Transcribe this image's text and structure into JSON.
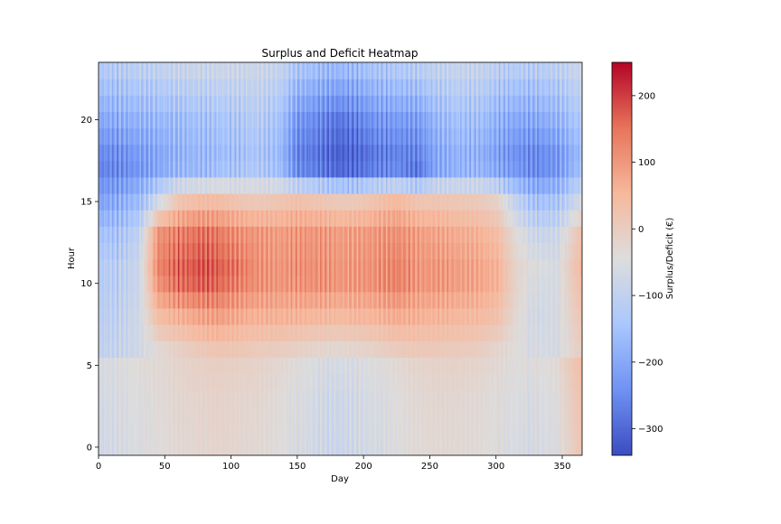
{
  "chart_data": {
    "type": "heatmap",
    "title": "Surplus and Deficit Heatmap",
    "xlabel": "Day",
    "ylabel": "Hour",
    "colorbar_label": "Surplus/Deficit (€)",
    "colormap": "coolwarm",
    "colormap_stops": [
      "#3b4cc0",
      "#6f92f3",
      "#aac7fd",
      "#dddddd",
      "#f7b89c",
      "#e7745b",
      "#b40426"
    ],
    "xlim": [
      0,
      365
    ],
    "ylim": [
      -0.5,
      23.5
    ],
    "x_ticks": [
      0,
      50,
      100,
      150,
      200,
      250,
      300,
      350
    ],
    "y_ticks": [
      0,
      5,
      10,
      15,
      20
    ],
    "color_range": [
      -340,
      250
    ],
    "colorbar_ticks": [
      -300,
      -200,
      -100,
      0,
      100,
      200
    ],
    "grid": false,
    "hours": [
      0,
      3,
      5,
      6,
      8,
      10,
      11,
      13,
      15,
      17,
      18,
      20,
      23
    ],
    "days": [
      0,
      15,
      30,
      45,
      60,
      75,
      90,
      105,
      120,
      135,
      150,
      165,
      180,
      195,
      210,
      225,
      240,
      255,
      270,
      285,
      300,
      315,
      330,
      345,
      364
    ],
    "values": [
      [
        -70,
        -60,
        -50,
        -40,
        -30,
        -25,
        -20,
        -25,
        -30,
        -40,
        -55,
        -70,
        -80,
        -70,
        -60,
        -45,
        -35,
        -30,
        -30,
        -35,
        -45,
        -55,
        -60,
        -50,
        20
      ],
      [
        -65,
        -55,
        -45,
        -35,
        -25,
        -20,
        -15,
        -20,
        -25,
        -35,
        -50,
        -65,
        -75,
        -65,
        -55,
        -40,
        -30,
        -25,
        -25,
        -30,
        -40,
        -50,
        -55,
        -45,
        30
      ],
      [
        -60,
        -50,
        -40,
        -30,
        -20,
        -10,
        -5,
        -10,
        -15,
        -25,
        -40,
        -55,
        -60,
        -55,
        -45,
        -30,
        -20,
        -15,
        -15,
        -20,
        -30,
        -40,
        -45,
        -35,
        40
      ],
      [
        -100,
        -90,
        -70,
        -30,
        -10,
        10,
        20,
        15,
        5,
        0,
        -10,
        -20,
        -25,
        -20,
        -10,
        5,
        10,
        10,
        5,
        0,
        -20,
        -40,
        -60,
        -60,
        0
      ],
      [
        -110,
        -100,
        -70,
        40,
        60,
        80,
        90,
        70,
        60,
        60,
        55,
        50,
        45,
        50,
        55,
        70,
        60,
        55,
        50,
        45,
        30,
        -30,
        -70,
        -60,
        20
      ],
      [
        -120,
        -110,
        -80,
        110,
        150,
        170,
        160,
        130,
        110,
        100,
        105,
        110,
        100,
        100,
        110,
        130,
        100,
        100,
        90,
        80,
        60,
        -20,
        -60,
        -60,
        40
      ],
      [
        -120,
        -110,
        -80,
        130,
        160,
        180,
        170,
        140,
        110,
        100,
        110,
        110,
        100,
        100,
        110,
        130,
        100,
        100,
        90,
        80,
        60,
        -20,
        -50,
        -60,
        50
      ],
      [
        -150,
        -140,
        -100,
        110,
        130,
        150,
        140,
        110,
        100,
        90,
        100,
        100,
        90,
        90,
        100,
        110,
        90,
        80,
        70,
        60,
        40,
        -40,
        -80,
        -80,
        30
      ],
      [
        -210,
        -190,
        -160,
        -60,
        20,
        40,
        40,
        20,
        10,
        20,
        30,
        20,
        10,
        10,
        30,
        50,
        20,
        20,
        15,
        10,
        -10,
        -100,
        -150,
        -140,
        -60
      ],
      [
        -260,
        -250,
        -230,
        -200,
        -170,
        -170,
        -150,
        -140,
        -130,
        -150,
        -250,
        -270,
        -300,
        -290,
        -260,
        -250,
        -280,
        -200,
        -180,
        -170,
        -200,
        -230,
        -250,
        -230,
        -150
      ],
      [
        -250,
        -240,
        -220,
        -200,
        -180,
        -170,
        -160,
        -150,
        -140,
        -160,
        -260,
        -280,
        -310,
        -300,
        -270,
        -260,
        -260,
        -200,
        -180,
        -180,
        -210,
        -240,
        -250,
        -230,
        -160
      ],
      [
        -200,
        -190,
        -180,
        -170,
        -160,
        -150,
        -140,
        -130,
        -120,
        -140,
        -230,
        -250,
        -280,
        -260,
        -230,
        -220,
        -220,
        -170,
        -150,
        -150,
        -180,
        -200,
        -200,
        -180,
        -130
      ],
      [
        -130,
        -120,
        -110,
        -100,
        -90,
        -85,
        -80,
        -80,
        -80,
        -90,
        -140,
        -160,
        -170,
        -160,
        -140,
        -130,
        -120,
        -100,
        -90,
        -90,
        -110,
        -120,
        -120,
        -110,
        -80
      ]
    ]
  }
}
